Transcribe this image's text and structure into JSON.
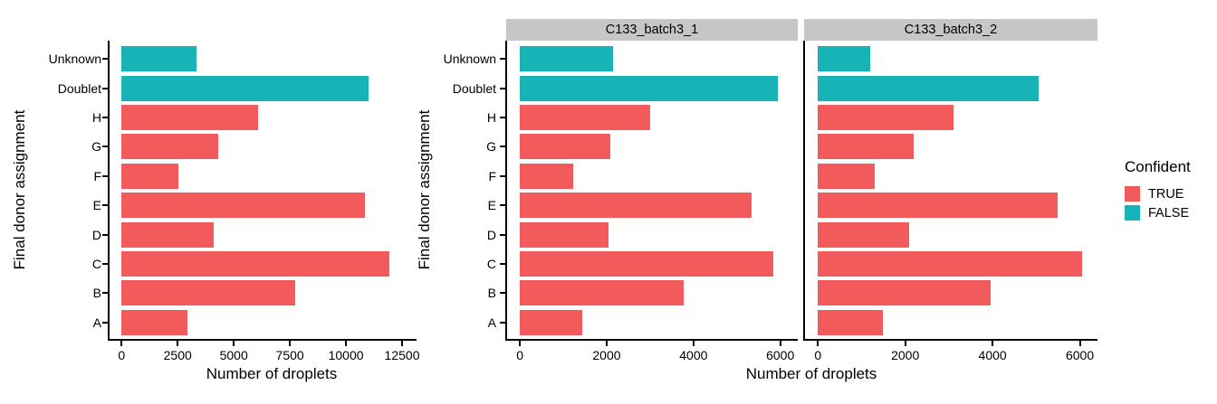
{
  "chart_data": {
    "type": "bar",
    "orientation": "horizontal",
    "grid": false,
    "xlabel": "Number of droplets",
    "ylabel": "Final donor assignment",
    "categories": [
      "Unknown",
      "Doublet",
      "H",
      "G",
      "F",
      "E",
      "D",
      "C",
      "B",
      "A"
    ],
    "category_confident": [
      "FALSE",
      "FALSE",
      "TRUE",
      "TRUE",
      "TRUE",
      "TRUE",
      "TRUE",
      "TRUE",
      "TRUE",
      "TRUE"
    ],
    "series_colors": {
      "TRUE": "#F35A5C",
      "FALSE": "#17B3B7"
    },
    "strip_bg": "#C6C6C6",
    "axis_color": "#000000",
    "panels": [
      {
        "facet_label": "",
        "values": [
          3350,
          11000,
          6100,
          4300,
          2530,
          10850,
          4100,
          11950,
          7750,
          2950
        ],
        "xlim": [
          0,
          12500
        ],
        "xticks": [
          0,
          2500,
          5000,
          7500,
          10000,
          12500
        ]
      },
      {
        "facet_label": "C133_batch3_1",
        "values": [
          2150,
          5950,
          3000,
          2080,
          1230,
          5340,
          2050,
          5850,
          3770,
          1440
        ],
        "xlim": [
          0,
          6000
        ],
        "xticks": [
          0,
          2000,
          4000,
          6000
        ]
      },
      {
        "facet_label": "C133_batch3_2",
        "values": [
          1200,
          5050,
          3100,
          2200,
          1300,
          5500,
          2100,
          6050,
          3950,
          1480
        ],
        "xlim": [
          0,
          6000
        ],
        "xticks": [
          0,
          2000,
          4000,
          6000
        ]
      }
    ],
    "legend": {
      "title": "Confident",
      "position": "right",
      "entries": [
        {
          "label": "TRUE",
          "color": "#F35A5C"
        },
        {
          "label": "FALSE",
          "color": "#17B3B7"
        }
      ]
    }
  }
}
